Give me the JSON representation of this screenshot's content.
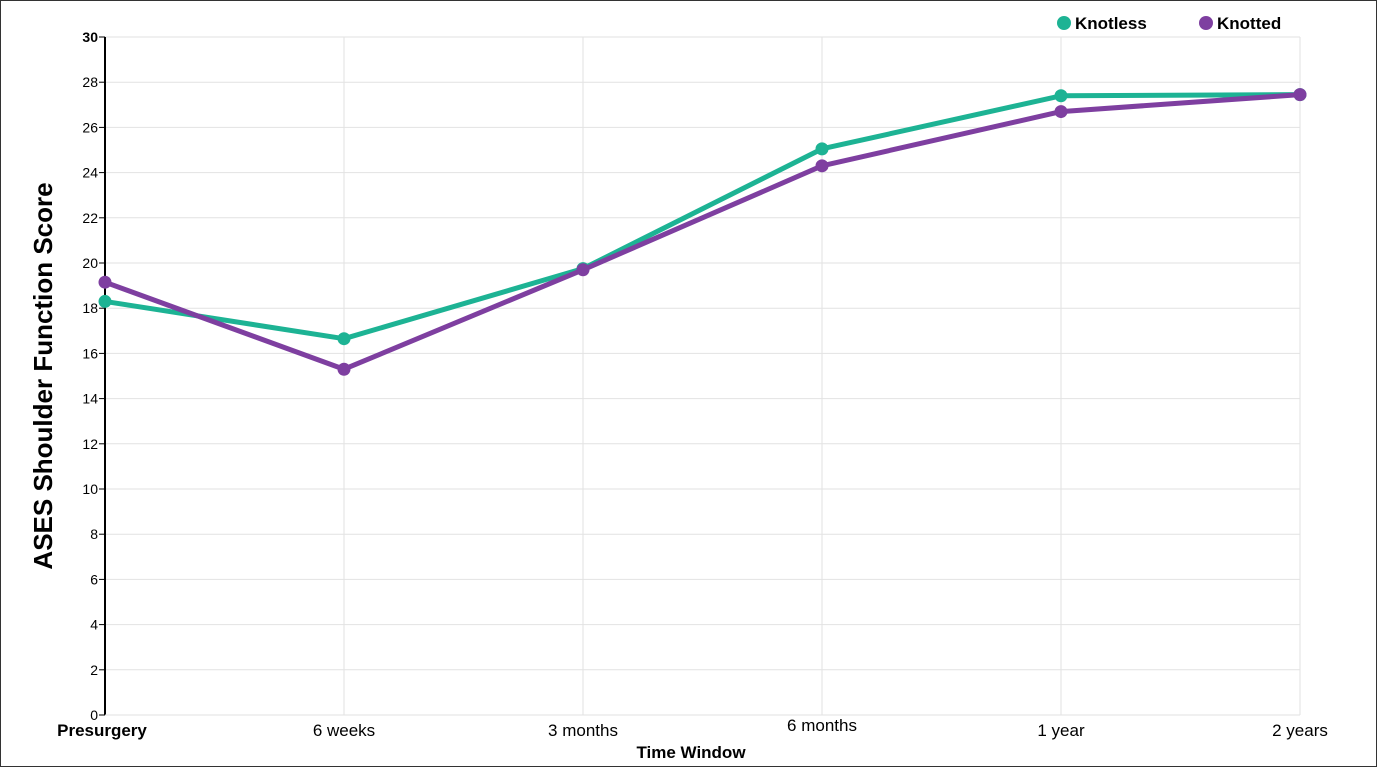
{
  "chart_data": {
    "type": "line",
    "xlabel": "Time Window",
    "ylabel": "ASES Shoulder Function Score",
    "categories": [
      "Presurgery",
      "6 weeks",
      "3 months",
      "6 months",
      "1 year",
      "2 years"
    ],
    "ylim": [
      0,
      30
    ],
    "yticks": [
      0,
      2,
      4,
      6,
      8,
      10,
      12,
      14,
      16,
      18,
      20,
      22,
      24,
      26,
      28,
      30
    ],
    "grid": true,
    "legend_position": "top-right",
    "series": [
      {
        "name": "Knotless",
        "color": "#1db394",
        "values": [
          18.3,
          16.65,
          19.75,
          25.05,
          27.4,
          27.45
        ]
      },
      {
        "name": "Knotted",
        "color": "#7e3fa0",
        "values": [
          19.15,
          15.3,
          19.7,
          24.3,
          26.7,
          27.45
        ]
      }
    ]
  }
}
